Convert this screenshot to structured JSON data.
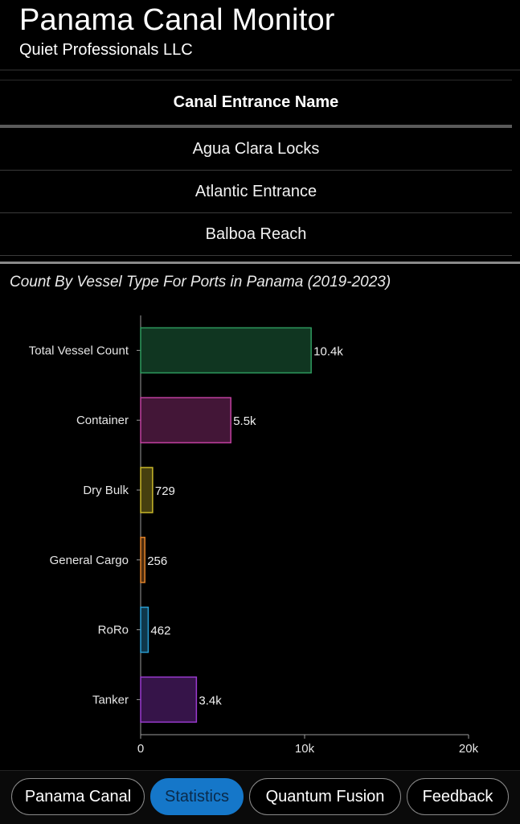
{
  "header": {
    "title": "Panama Canal Monitor",
    "subtitle": "Quiet Professionals LLC"
  },
  "table": {
    "column_header": "Canal Entrance Name",
    "rows": [
      "Agua Clara Locks",
      "Atlantic Entrance",
      "Balboa Reach"
    ]
  },
  "chart_title": "Count By Vessel Type For Ports in Panama (2019-2023)",
  "chart_data": {
    "type": "bar",
    "orientation": "horizontal",
    "title": "Count By Vessel Type For Ports in Panama (2019-2023)",
    "categories": [
      "Total Vessel Count",
      "Container",
      "Dry Bulk",
      "General Cargo",
      "RoRo",
      "Tanker"
    ],
    "values": [
      10400,
      5500,
      729,
      256,
      462,
      3400
    ],
    "value_labels": [
      "10.4k",
      "5.5k",
      "729",
      "256",
      "462",
      "3.4k"
    ],
    "colors": [
      "#2e9a5e",
      "#c0409f",
      "#c9b82a",
      "#e0822a",
      "#2a9ed4",
      "#9a3ad0"
    ],
    "xlim": [
      0,
      20000
    ],
    "xticks": [
      0,
      10000,
      20000
    ],
    "xtick_labels": [
      "0",
      "10k",
      "20k"
    ],
    "grid": false
  },
  "nav": {
    "items": [
      {
        "label": "Panama Canal",
        "active": false
      },
      {
        "label": "Statistics",
        "active": true
      },
      {
        "label": "Quantum Fusion",
        "active": false
      },
      {
        "label": "Feedback",
        "active": false
      }
    ]
  }
}
